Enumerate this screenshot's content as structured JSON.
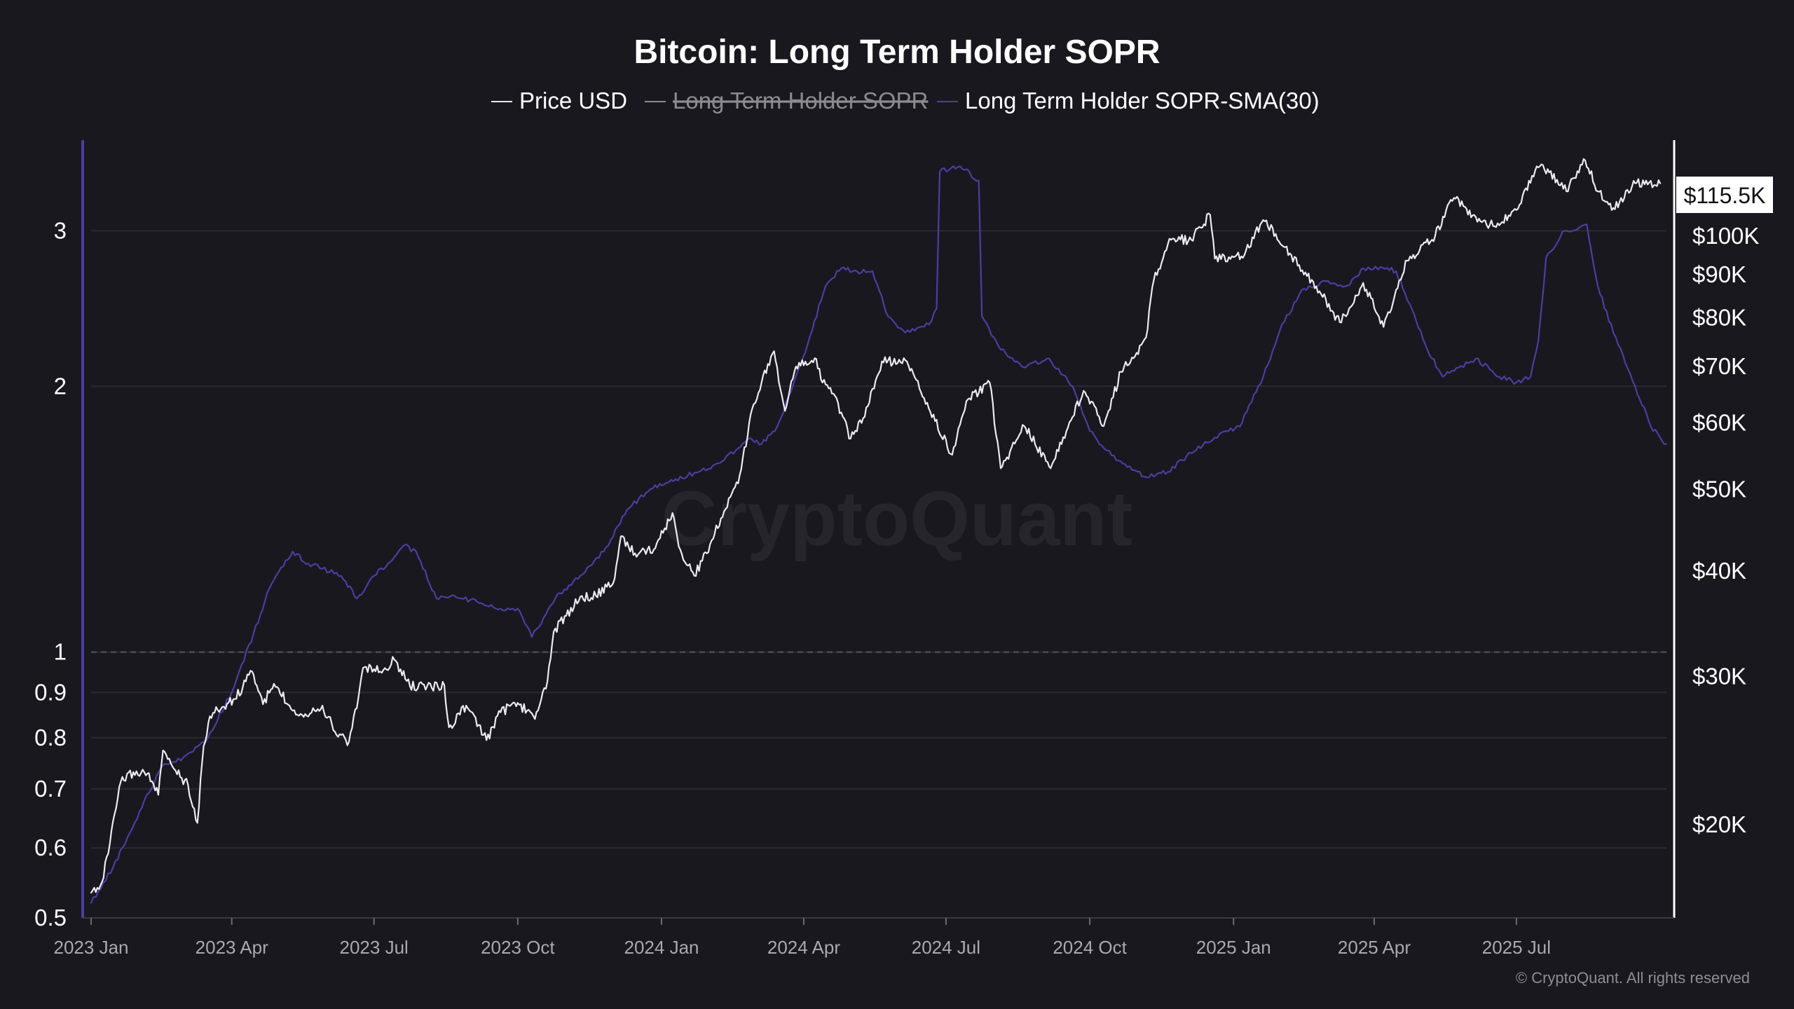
{
  "chart_data": {
    "type": "line",
    "title": "Bitcoin: Long Term Holder SOPR",
    "legend": [
      {
        "label": "Price USD",
        "color": "#e8e8ec",
        "hidden": false
      },
      {
        "label": "Long Term Holder SOPR",
        "color": "#8a8a8f",
        "hidden": true
      },
      {
        "label": "Long Term Holder SOPR-SMA(30)",
        "color": "#4a3fa0",
        "hidden": false
      }
    ],
    "y_left": {
      "scale": "log",
      "range": [
        0.5,
        3.8
      ],
      "ticks": [
        "0.5",
        "0.6",
        "0.7",
        "0.8",
        "0.9",
        "1",
        "2",
        "3"
      ]
    },
    "y_right": {
      "scale": "log",
      "range": [
        15500,
        130000
      ],
      "ticks": [
        [
          "$20K",
          20000
        ],
        [
          "$30K",
          30000
        ],
        [
          "$40K",
          40000
        ],
        [
          "$50K",
          50000
        ],
        [
          "$60K",
          60000
        ],
        [
          "$70K",
          70000
        ],
        [
          "$80K",
          80000
        ],
        [
          "$90K",
          90000
        ],
        [
          "$100K",
          100000
        ]
      ]
    },
    "x": {
      "range": [
        "2023-01-01",
        "2025-10-05"
      ],
      "ticks": [
        [
          "2023 Jan",
          "2023-01-01"
        ],
        [
          "2023 Apr",
          "2023-04-01"
        ],
        [
          "2023 Jul",
          "2023-07-01"
        ],
        [
          "2023 Oct",
          "2023-10-01"
        ],
        [
          "2024 Jan",
          "2024-01-01"
        ],
        [
          "2024 Apr",
          "2024-04-01"
        ],
        [
          "2024 Jul",
          "2024-07-01"
        ],
        [
          "2024 Oct",
          "2024-10-01"
        ],
        [
          "2025 Jan",
          "2025-01-01"
        ],
        [
          "2025 Apr",
          "2025-04-01"
        ],
        [
          "2025 Jul",
          "2025-07-01"
        ]
      ]
    },
    "reference_line": 1,
    "current_price_label": "$115.5K",
    "current_price": 115500,
    "series": [
      {
        "name": "Price USD",
        "axis": "right",
        "points": [
          [
            "2023-01-01",
            16600
          ],
          [
            "2023-01-08",
            17100
          ],
          [
            "2023-01-13",
            19000
          ],
          [
            "2023-01-20",
            22500
          ],
          [
            "2023-01-28",
            23100
          ],
          [
            "2023-02-06",
            23000
          ],
          [
            "2023-02-13",
            21700
          ],
          [
            "2023-02-16",
            24500
          ],
          [
            "2023-02-24",
            23200
          ],
          [
            "2023-03-04",
            22300
          ],
          [
            "2023-03-10",
            20100
          ],
          [
            "2023-03-14",
            24800
          ],
          [
            "2023-03-18",
            26900
          ],
          [
            "2023-03-26",
            27600
          ],
          [
            "2023-04-03",
            28200
          ],
          [
            "2023-04-14",
            30400
          ],
          [
            "2023-04-21",
            27800
          ],
          [
            "2023-04-28",
            29400
          ],
          [
            "2023-05-08",
            27700
          ],
          [
            "2023-05-16",
            27000
          ],
          [
            "2023-05-29",
            27700
          ],
          [
            "2023-06-06",
            25800
          ],
          [
            "2023-06-15",
            25100
          ],
          [
            "2023-06-21",
            28300
          ],
          [
            "2023-06-24",
            30700
          ],
          [
            "2023-07-01",
            30600
          ],
          [
            "2023-07-06",
            30300
          ],
          [
            "2023-07-14",
            31400
          ],
          [
            "2023-07-24",
            29200
          ],
          [
            "2023-08-04",
            29200
          ],
          [
            "2023-08-15",
            29300
          ],
          [
            "2023-08-18",
            26100
          ],
          [
            "2023-08-29",
            27700
          ],
          [
            "2023-09-11",
            25200
          ],
          [
            "2023-09-20",
            27200
          ],
          [
            "2023-10-01",
            27900
          ],
          [
            "2023-10-12",
            26700
          ],
          [
            "2023-10-20",
            29600
          ],
          [
            "2023-10-24",
            33900
          ],
          [
            "2023-11-01",
            35400
          ],
          [
            "2023-11-10",
            37300
          ],
          [
            "2023-11-20",
            37400
          ],
          [
            "2023-12-01",
            38700
          ],
          [
            "2023-12-06",
            44000
          ],
          [
            "2023-12-15",
            42000
          ],
          [
            "2023-12-28",
            42600
          ],
          [
            "2024-01-08",
            46900
          ],
          [
            "2024-01-12",
            42800
          ],
          [
            "2024-01-22",
            39500
          ],
          [
            "2024-02-01",
            43000
          ],
          [
            "2024-02-10",
            47100
          ],
          [
            "2024-02-20",
            52000
          ],
          [
            "2024-02-28",
            62400
          ],
          [
            "2024-03-05",
            67000
          ],
          [
            "2024-03-13",
            73000
          ],
          [
            "2024-03-20",
            62000
          ],
          [
            "2024-03-27",
            70000
          ],
          [
            "2024-04-08",
            71600
          ],
          [
            "2024-04-13",
            67000
          ],
          [
            "2024-04-20",
            65000
          ],
          [
            "2024-05-01",
            57500
          ],
          [
            "2024-05-10",
            61000
          ],
          [
            "2024-05-21",
            71000
          ],
          [
            "2024-06-06",
            71000
          ],
          [
            "2024-06-24",
            60300
          ],
          [
            "2024-07-05",
            55000
          ],
          [
            "2024-07-15",
            64000
          ],
          [
            "2024-07-29",
            67000
          ],
          [
            "2024-08-05",
            53000
          ],
          [
            "2024-08-20",
            59500
          ],
          [
            "2024-09-06",
            53000
          ],
          [
            "2024-09-27",
            65500
          ],
          [
            "2024-10-10",
            59500
          ],
          [
            "2024-10-21",
            69000
          ],
          [
            "2024-10-30",
            72000
          ],
          [
            "2024-11-06",
            75800
          ],
          [
            "2024-11-11",
            88700
          ],
          [
            "2024-11-22",
            99000
          ],
          [
            "2024-12-05",
            99000
          ],
          [
            "2024-12-17",
            106000
          ],
          [
            "2024-12-20",
            94000
          ],
          [
            "2025-01-01",
            94400
          ],
          [
            "2025-01-08",
            95000
          ],
          [
            "2025-01-20",
            104500
          ],
          [
            "2025-02-03",
            97000
          ],
          [
            "2025-02-25",
            86000
          ],
          [
            "2025-03-10",
            79000
          ],
          [
            "2025-03-25",
            88000
          ],
          [
            "2025-04-07",
            78000
          ],
          [
            "2025-04-22",
            93500
          ],
          [
            "2025-05-08",
            99000
          ],
          [
            "2025-05-22",
            111000
          ],
          [
            "2025-06-06",
            104000
          ],
          [
            "2025-06-20",
            103000
          ],
          [
            "2025-07-03",
            109000
          ],
          [
            "2025-07-14",
            121000
          ],
          [
            "2025-07-22",
            119000
          ],
          [
            "2025-08-02",
            113000
          ],
          [
            "2025-08-14",
            123000
          ],
          [
            "2025-08-22",
            113000
          ],
          [
            "2025-09-01",
            108000
          ],
          [
            "2025-09-15",
            115500
          ],
          [
            "2025-10-01",
            115500
          ]
        ]
      },
      {
        "name": "Long Term Holder SOPR-SMA(30)",
        "axis": "left",
        "points": [
          [
            "2023-01-01",
            0.52
          ],
          [
            "2023-01-15",
            0.57
          ],
          [
            "2023-02-01",
            0.66
          ],
          [
            "2023-02-15",
            0.74
          ],
          [
            "2023-03-01",
            0.76
          ],
          [
            "2023-03-15",
            0.79
          ],
          [
            "2023-04-01",
            0.9
          ],
          [
            "2023-04-15",
            1.05
          ],
          [
            "2023-04-25",
            1.18
          ],
          [
            "2023-05-10",
            1.3
          ],
          [
            "2023-05-20",
            1.26
          ],
          [
            "2023-06-10",
            1.22
          ],
          [
            "2023-06-20",
            1.15
          ],
          [
            "2023-07-01",
            1.22
          ],
          [
            "2023-07-10",
            1.26
          ],
          [
            "2023-07-20",
            1.32
          ],
          [
            "2023-07-28",
            1.3
          ],
          [
            "2023-08-10",
            1.15
          ],
          [
            "2023-08-20",
            1.16
          ],
          [
            "2023-09-05",
            1.14
          ],
          [
            "2023-09-20",
            1.12
          ],
          [
            "2023-10-01",
            1.12
          ],
          [
            "2023-10-10",
            1.04
          ],
          [
            "2023-10-25",
            1.15
          ],
          [
            "2023-11-10",
            1.22
          ],
          [
            "2023-11-25",
            1.3
          ],
          [
            "2023-12-10",
            1.45
          ],
          [
            "2023-12-25",
            1.53
          ],
          [
            "2024-01-10",
            1.57
          ],
          [
            "2024-01-25",
            1.6
          ],
          [
            "2024-02-10",
            1.65
          ],
          [
            "2024-02-25",
            1.74
          ],
          [
            "2024-03-05",
            1.72
          ],
          [
            "2024-03-15",
            1.8
          ],
          [
            "2024-03-25",
            2.0
          ],
          [
            "2024-04-05",
            2.28
          ],
          [
            "2024-04-15",
            2.6
          ],
          [
            "2024-04-25",
            2.72
          ],
          [
            "2024-05-05",
            2.7
          ],
          [
            "2024-05-15",
            2.7
          ],
          [
            "2024-05-25",
            2.4
          ],
          [
            "2024-06-05",
            2.3
          ],
          [
            "2024-06-20",
            2.35
          ],
          [
            "2024-06-25",
            2.45
          ],
          [
            "2024-06-27",
            3.5
          ],
          [
            "2024-07-10",
            3.55
          ],
          [
            "2024-07-22",
            3.42
          ],
          [
            "2024-07-24",
            2.4
          ],
          [
            "2024-08-05",
            2.2
          ],
          [
            "2024-08-20",
            2.1
          ],
          [
            "2024-09-05",
            2.15
          ],
          [
            "2024-09-20",
            2.0
          ],
          [
            "2024-10-01",
            1.78
          ],
          [
            "2024-10-15",
            1.67
          ],
          [
            "2024-10-25",
            1.62
          ],
          [
            "2024-11-05",
            1.58
          ],
          [
            "2024-11-20",
            1.6
          ],
          [
            "2024-12-05",
            1.68
          ],
          [
            "2024-12-20",
            1.75
          ],
          [
            "2025-01-05",
            1.8
          ],
          [
            "2025-01-20",
            2.05
          ],
          [
            "2025-02-01",
            2.35
          ],
          [
            "2025-02-15",
            2.58
          ],
          [
            "2025-03-01",
            2.63
          ],
          [
            "2025-03-15",
            2.6
          ],
          [
            "2025-03-25",
            2.72
          ],
          [
            "2025-04-05",
            2.73
          ],
          [
            "2025-04-15",
            2.7
          ],
          [
            "2025-04-25",
            2.45
          ],
          [
            "2025-05-05",
            2.2
          ],
          [
            "2025-05-15",
            2.05
          ],
          [
            "2025-05-25",
            2.1
          ],
          [
            "2025-06-05",
            2.15
          ],
          [
            "2025-06-20",
            2.05
          ],
          [
            "2025-07-01",
            2.02
          ],
          [
            "2025-07-10",
            2.05
          ],
          [
            "2025-07-15",
            2.25
          ],
          [
            "2025-07-20",
            2.8
          ],
          [
            "2025-08-01",
            3.0
          ],
          [
            "2025-08-15",
            3.05
          ],
          [
            "2025-08-22",
            2.6
          ],
          [
            "2025-09-01",
            2.3
          ],
          [
            "2025-09-15",
            2.0
          ],
          [
            "2025-09-25",
            1.8
          ],
          [
            "2025-10-05",
            1.72
          ]
        ]
      }
    ]
  },
  "branding": {
    "watermark": "CryptoQuant",
    "copyright": "© CryptoQuant. All rights reserved"
  }
}
